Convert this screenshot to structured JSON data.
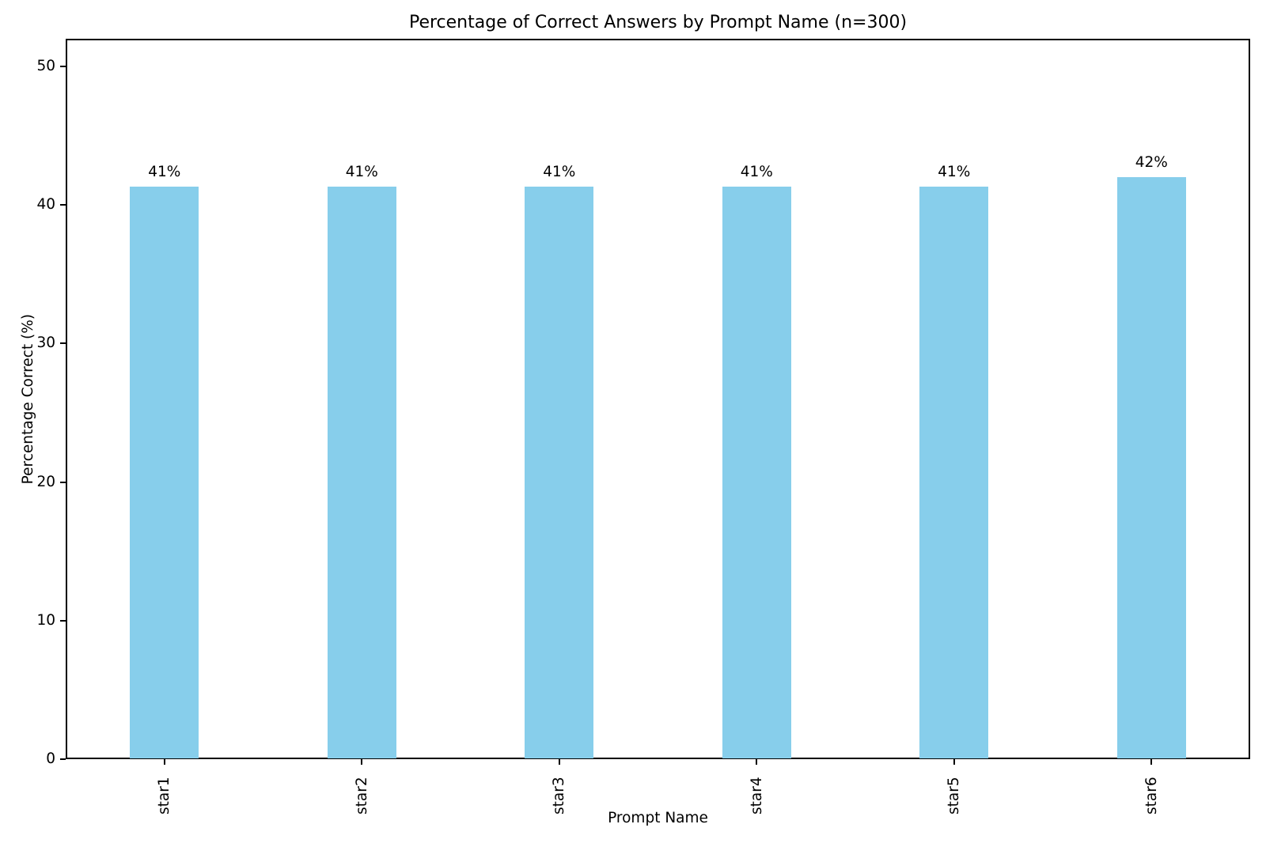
{
  "chart_data": {
    "type": "bar",
    "title": "Percentage of Correct Answers by Prompt Name (n=300)",
    "categories": [
      "star1",
      "star2",
      "star3",
      "star4",
      "star5",
      "star6"
    ],
    "values": [
      41.33,
      41.33,
      41.33,
      41.33,
      41.33,
      42.0
    ],
    "bar_labels": [
      "41%",
      "41%",
      "41%",
      "41%",
      "41%",
      "42%"
    ],
    "xlabel": "Prompt Name",
    "ylabel": "Percentage Correct (%)",
    "ylim": [
      0,
      52
    ],
    "yticks": [
      0,
      10,
      20,
      30,
      40,
      50
    ],
    "xtick_rotation": 90,
    "bar_color": "#87CEEB",
    "axis_color": "#000000",
    "background_color": "#ffffff",
    "grid": false,
    "legend": "none"
  }
}
